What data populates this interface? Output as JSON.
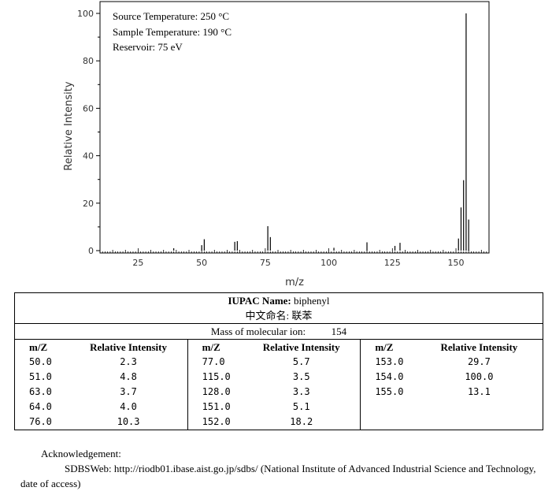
{
  "chart_data": {
    "type": "bar",
    "xlabel": "m/z",
    "ylabel": "Relative Intensity",
    "xlim": [
      10,
      163
    ],
    "ylim": [
      0,
      100
    ],
    "xticks": [
      25,
      50,
      75,
      100,
      125,
      150
    ],
    "yticks": [
      0,
      20,
      40,
      60,
      80,
      100
    ],
    "conditions": [
      "Source Temperature: 250 °C",
      "Sample Temperature: 190 °C",
      "Reservoir: 75 eV"
    ],
    "peaks": [
      {
        "x": 39,
        "y": 1.0
      },
      {
        "x": 50,
        "y": 2.3
      },
      {
        "x": 51,
        "y": 4.8
      },
      {
        "x": 63,
        "y": 3.7
      },
      {
        "x": 64,
        "y": 4.0
      },
      {
        "x": 76,
        "y": 10.3
      },
      {
        "x": 77,
        "y": 5.7
      },
      {
        "x": 102,
        "y": 1.2
      },
      {
        "x": 115,
        "y": 3.5
      },
      {
        "x": 126,
        "y": 2.0
      },
      {
        "x": 128,
        "y": 3.3
      },
      {
        "x": 151,
        "y": 5.1
      },
      {
        "x": 152,
        "y": 18.2
      },
      {
        "x": 153,
        "y": 29.7
      },
      {
        "x": 154,
        "y": 100.0
      },
      {
        "x": 155,
        "y": 13.1
      }
    ]
  },
  "info": {
    "iupac_label": "IUPAC Name:",
    "iupac_value": "biphenyl",
    "chinese_label": "中文命名:",
    "chinese_value": "联苯",
    "mass_label": "Mass of molecular ion:",
    "mass_value": "154",
    "col_mz": "m/Z",
    "col_ri": "Relative Intensity"
  },
  "table": {
    "col1": [
      {
        "mz": "50.0",
        "ri": "2.3"
      },
      {
        "mz": "51.0",
        "ri": "4.8"
      },
      {
        "mz": "63.0",
        "ri": "3.7"
      },
      {
        "mz": "64.0",
        "ri": "4.0"
      },
      {
        "mz": "76.0",
        "ri": "10.3"
      }
    ],
    "col2": [
      {
        "mz": "77.0",
        "ri": "5.7"
      },
      {
        "mz": "115.0",
        "ri": "3.5"
      },
      {
        "mz": "128.0",
        "ri": "3.3"
      },
      {
        "mz": "151.0",
        "ri": "5.1"
      },
      {
        "mz": "152.0",
        "ri": "18.2"
      }
    ],
    "col3": [
      {
        "mz": "153.0",
        "ri": "29.7"
      },
      {
        "mz": "154.0",
        "ri": "100.0"
      },
      {
        "mz": "155.0",
        "ri": "13.1"
      }
    ]
  },
  "ack": {
    "title": "Acknowledgement:",
    "text": "SDBSWeb: http://riodb01.ibase.aist.go.jp/sdbs/ (National Institute of Advanced Industrial Science and Technology, date of access)"
  }
}
